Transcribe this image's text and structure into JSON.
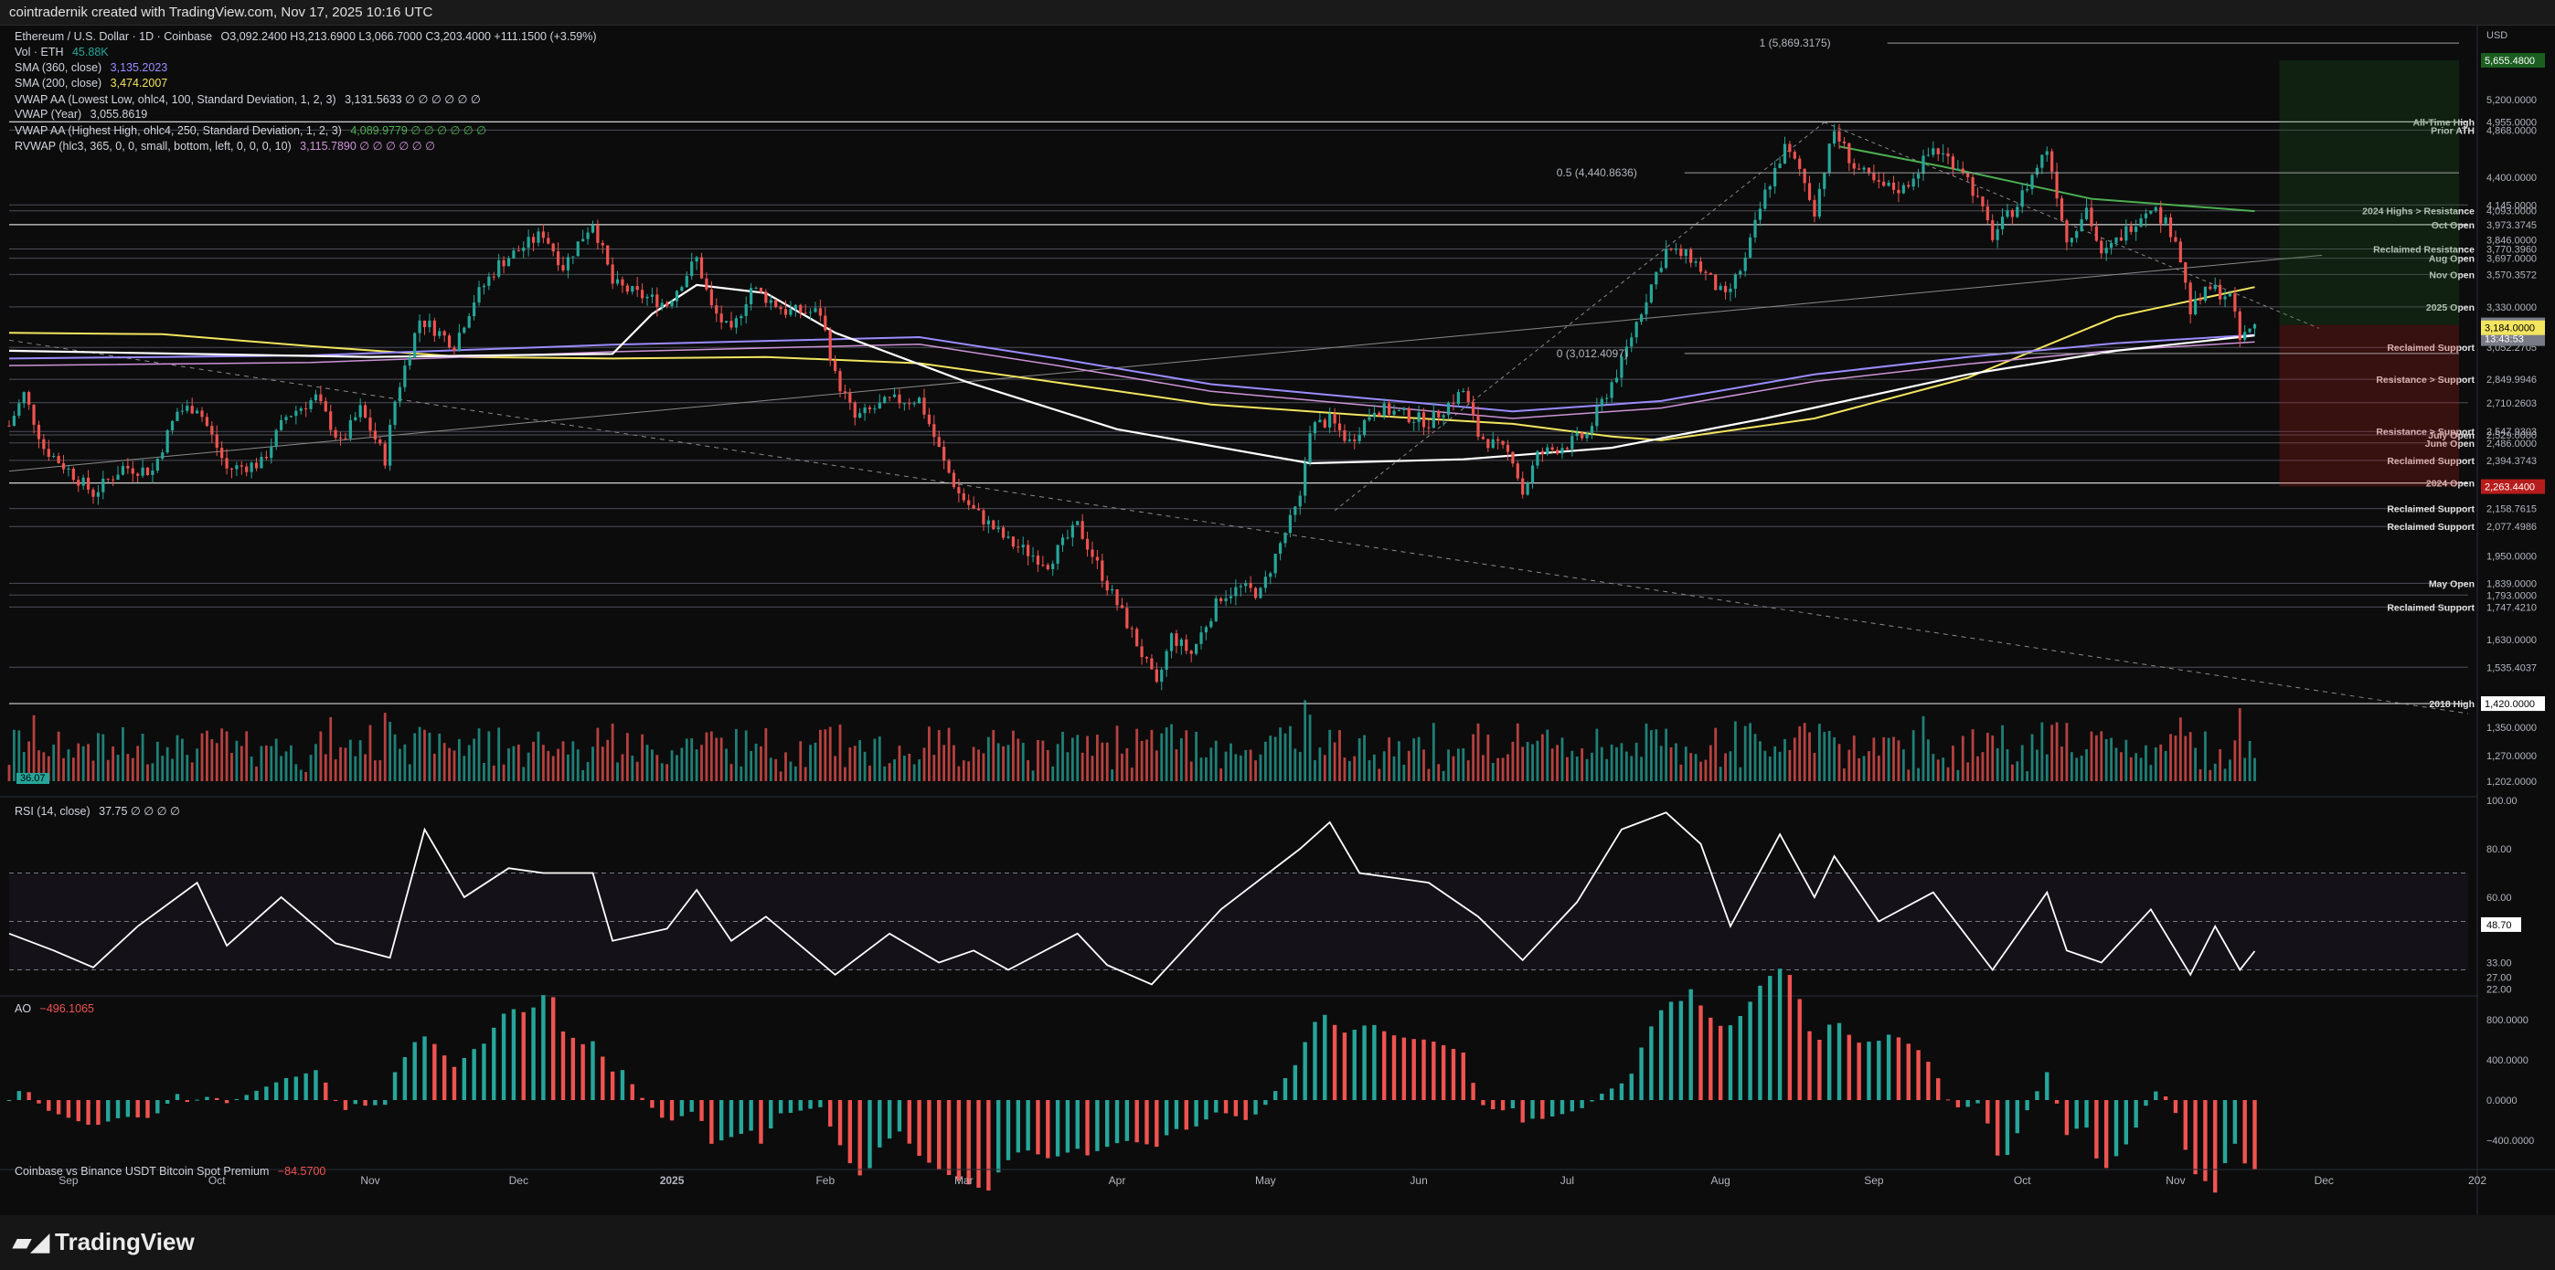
{
  "header": {
    "credit": "cointradernik created with TradingView.com, Nov 17, 2025 10:16 UTC"
  },
  "footer": {
    "brand": "TradingView"
  },
  "legend": {
    "symbol": "Ethereum / U.S. Dollar · 1D · Coinbase",
    "ohlc": "O3,092.2400  H3,213.6900  L3,066.7000  C3,203.4000  +111.1500 (+3.59%)",
    "vol": "Vol · ETH",
    "vol_value": "45.88K",
    "sma360": "SMA (360, close)",
    "sma360_value": "3,135.2023",
    "sma200": "SMA (200, close)",
    "sma200_value": "3,474.2007",
    "vwap_low": "VWAP AA (Lowest Low, ohlc4, 100, Standard Deviation, 1, 2, 3)",
    "vwap_low_value": "3,131.5633  ∅ ∅ ∅ ∅ ∅ ∅",
    "vwap_year": "VWAP (Year)",
    "vwap_year_value": "3,055.8619",
    "vwap_high": "VWAP AA (Highest High, ohlc4, 250, Standard Deviation, 1, 2, 3)",
    "vwap_high_value": "4,089.9779  ∅ ∅ ∅ ∅ ∅ ∅",
    "rvwap": "RVWAP (hlc3, 365, 0, 0, small, bottom, left, 0, 0, 0, 10)",
    "rvwap_value": "3,115.7890  ∅ ∅ ∅ ∅ ∅ ∅",
    "rsi": "RSI (14, close)",
    "rsi_value": "37.75  ∅ ∅ ∅ ∅",
    "ao": "AO",
    "ao_value": "−496.1065",
    "premium": "Coinbase vs Binance USDT Bitcoin Spot Premium",
    "premium_value": "−84.5700",
    "vol_tag": "36.07"
  },
  "colors": {
    "up": "#26a69a",
    "down": "#ef5350",
    "sma200": "#f3e55f",
    "sma360": "#9b8cff",
    "vwap_low": "#ffffff",
    "vwap_high": "#4caf50",
    "rvwap": "#ce93d8",
    "rsi": "#ffffff",
    "axis_text": "#b2b5be",
    "level_line": "#5d606b",
    "current_price_bg": "#787b86"
  },
  "chart_data": {
    "type": "candlestick",
    "symbol": "ETHUSD",
    "timeframe": "1D",
    "x_range": [
      "2024-08-20",
      "2026-01-01"
    ],
    "y_scale": "log",
    "ylim": [
      1202,
      5700
    ],
    "x_ticks": [
      "Sep",
      "Oct",
      "Nov",
      "Dec",
      "2025",
      "Feb",
      "Mar",
      "Apr",
      "May",
      "Jun",
      "Jul",
      "Aug",
      "Sep",
      "Oct",
      "Nov",
      "Dec",
      "202"
    ],
    "price_axis_labels": [
      "USD",
      "5,200.0000",
      "4,400.0000",
      "3,846.0000",
      "1,950.0000",
      "1,630.0000",
      "1,350.0000",
      "1,270.0000",
      "1,202.0000"
    ],
    "price_tags": [
      {
        "label": "5,655.4800",
        "color": "#1b5e20",
        "fg": "#ffffff"
      },
      {
        "label": "3,203.4000",
        "color": "#787b86",
        "fg": "#ffffff"
      },
      {
        "label": "13:43:53",
        "color": "#787b86",
        "fg": "#ffffff"
      },
      {
        "label": "3,184.0000",
        "color": "#f3e55f",
        "fg": "#000000"
      },
      {
        "label": "2,263.4400",
        "color": "#b71c1c",
        "fg": "#ffffff"
      },
      {
        "label": "1,420.0000",
        "color": "#ffffff",
        "fg": "#000000"
      }
    ],
    "levels": [
      {
        "price": 4955,
        "value": "4,955.0000",
        "label": "All-Time High"
      },
      {
        "price": 4868,
        "value": "4,868.0000",
        "label": "Prior ATH"
      },
      {
        "price": 4145,
        "value": "4,145.0000",
        "label": ""
      },
      {
        "price": 4093,
        "value": "4,093.0000",
        "label": "2024 Highs > Resistance"
      },
      {
        "price": 3973.3745,
        "value": "3,973.3745",
        "label": "Oct Open"
      },
      {
        "price": 3770.396,
        "value": "3,770.3960",
        "label": "Reclaimed Resistance"
      },
      {
        "price": 3697,
        "value": "3,697.0000",
        "label": "Aug Open"
      },
      {
        "price": 3570.3572,
        "value": "3,570.3572",
        "label": "Nov Open"
      },
      {
        "price": 3330,
        "value": "3,330.0000",
        "label": "2025 Open"
      },
      {
        "price": 3052.2705,
        "value": "3,052.2705",
        "label": "Reclaimed Support"
      },
      {
        "price": 2849.9946,
        "value": "2,849.9946",
        "label": "Resistance > Support"
      },
      {
        "price": 2710.2603,
        "value": "2,710.2603",
        "label": ""
      },
      {
        "price": 2547.9303,
        "value": "2,547.9303",
        "label": "Resistance > Support"
      },
      {
        "price": 2529,
        "value": "2,529.0000",
        "label": "July Open"
      },
      {
        "price": 2486,
        "value": "2,486.0000",
        "label": "June Open"
      },
      {
        "price": 2394.3743,
        "value": "2,394.3743",
        "label": "Reclaimed Support"
      },
      {
        "price": 2281,
        "value": "2,281.0000",
        "label": "2024 Open"
      },
      {
        "price": 2158.7615,
        "value": "2,158.7615",
        "label": "Reclaimed Support"
      },
      {
        "price": 2077.4986,
        "value": "2,077.4986",
        "label": "Reclaimed Support"
      },
      {
        "price": 1839,
        "value": "1,839.0000",
        "label": "May Open"
      },
      {
        "price": 1793,
        "value": "1,793.0000",
        "label": ""
      },
      {
        "price": 1747.421,
        "value": "1,747.4210",
        "label": "Reclaimed Support"
      },
      {
        "price": 1535.4037,
        "value": "1,535.4037",
        "label": ""
      },
      {
        "price": 1420,
        "value": "1,420.0000",
        "label": "2018 High"
      }
    ],
    "fib": [
      {
        "label": "1 (5,869.3175)",
        "price": 5869.3175
      },
      {
        "label": "0.5 (4,440.8636)",
        "price": 4440.8636
      },
      {
        "label": "0 (3,012.4097)",
        "price": 3012.4097
      }
    ],
    "close_path": [
      [
        "2024-08-20",
        2580
      ],
      [
        "2024-08-23",
        2760
      ],
      [
        "2024-08-27",
        2460
      ],
      [
        "2024-09-06",
        2230
      ],
      [
        "2024-09-12",
        2360
      ],
      [
        "2024-09-18",
        2340
      ],
      [
        "2024-09-23",
        2660
      ],
      [
        "2024-09-27",
        2690
      ],
      [
        "2024-10-03",
        2350
      ],
      [
        "2024-10-10",
        2380
      ],
      [
        "2024-10-15",
        2630
      ],
      [
        "2024-10-21",
        2740
      ],
      [
        "2024-10-26",
        2480
      ],
      [
        "2024-10-30",
        2670
      ],
      [
        "2024-11-04",
        2400
      ],
      [
        "2024-11-06",
        2720
      ],
      [
        "2024-11-11",
        3240
      ],
      [
        "2024-11-13",
        3200
      ],
      [
        "2024-11-18",
        3070
      ],
      [
        "2024-11-22",
        3380
      ],
      [
        "2024-11-27",
        3650
      ],
      [
        "2024-12-06",
        3900
      ],
      [
        "2024-12-10",
        3630
      ],
      [
        "2024-12-16",
        4000
      ],
      [
        "2024-12-20",
        3500
      ],
      [
        "2024-12-25",
        3420
      ],
      [
        "2024-12-31",
        3350
      ],
      [
        "2025-01-06",
        3690
      ],
      [
        "2025-01-09",
        3320
      ],
      [
        "2025-01-13",
        3140
      ],
      [
        "2025-01-17",
        3470
      ],
      [
        "2025-01-24",
        3300
      ],
      [
        "2025-01-31",
        3290
      ],
      [
        "2025-02-03",
        2870
      ],
      [
        "2025-02-07",
        2620
      ],
      [
        "2025-02-14",
        2720
      ],
      [
        "2025-02-20",
        2730
      ],
      [
        "2025-02-25",
        2380
      ],
      [
        "2025-02-28",
        2230
      ],
      [
        "2025-03-03",
        2150
      ],
      [
        "2025-03-10",
        2010
      ],
      [
        "2025-03-18",
        1920
      ],
      [
        "2025-03-24",
        2080
      ],
      [
        "2025-03-30",
        1830
      ],
      [
        "2025-04-06",
        1580
      ],
      [
        "2025-04-09",
        1470
      ],
      [
        "2025-04-12",
        1640
      ],
      [
        "2025-04-16",
        1580
      ],
      [
        "2025-04-22",
        1790
      ],
      [
        "2025-04-26",
        1820
      ],
      [
        "2025-04-30",
        1800
      ],
      [
        "2025-05-08",
        2200
      ],
      [
        "2025-05-10",
        2570
      ],
      [
        "2025-05-14",
        2610
      ],
      [
        "2025-05-18",
        2490
      ],
      [
        "2025-05-23",
        2680
      ],
      [
        "2025-05-28",
        2650
      ],
      [
        "2025-06-03",
        2600
      ],
      [
        "2025-06-10",
        2780
      ],
      [
        "2025-06-13",
        2530
      ],
      [
        "2025-06-20",
        2410
      ],
      [
        "2025-06-22",
        2230
      ],
      [
        "2025-06-25",
        2420
      ],
      [
        "2025-07-01",
        2480
      ],
      [
        "2025-07-05",
        2530
      ],
      [
        "2025-07-09",
        2770
      ],
      [
        "2025-07-12",
        2950
      ],
      [
        "2025-07-17",
        3400
      ],
      [
        "2025-07-21",
        3760
      ],
      [
        "2025-07-26",
        3700
      ],
      [
        "2025-08-02",
        3390
      ],
      [
        "2025-08-06",
        3680
      ],
      [
        "2025-08-10",
        4250
      ],
      [
        "2025-08-14",
        4680
      ],
      [
        "2025-08-17",
        4470
      ],
      [
        "2025-08-20",
        4100
      ],
      [
        "2025-08-24",
        4860
      ],
      [
        "2025-08-28",
        4500
      ],
      [
        "2025-09-02",
        4310
      ],
      [
        "2025-09-07",
        4290
      ],
      [
        "2025-09-13",
        4680
      ],
      [
        "2025-09-19",
        4480
      ],
      [
        "2025-09-25",
        3880
      ],
      [
        "2025-09-30",
        4150
      ],
      [
        "2025-10-06",
        4680
      ],
      [
        "2025-10-10",
        3830
      ],
      [
        "2025-10-14",
        4120
      ],
      [
        "2025-10-17",
        3700
      ],
      [
        "2025-10-21",
        3880
      ],
      [
        "2025-10-27",
        4150
      ],
      [
        "2025-11-01",
        3870
      ],
      [
        "2025-11-04",
        3300
      ],
      [
        "2025-11-08",
        3470
      ],
      [
        "2025-11-12",
        3400
      ],
      [
        "2025-11-14",
        3100
      ],
      [
        "2025-11-17",
        3203.4
      ]
    ],
    "sma200_path": [
      [
        "2024-08-20",
        3150
      ],
      [
        "2024-09-20",
        3140
      ],
      [
        "2024-10-20",
        3060
      ],
      [
        "2024-11-20",
        2990
      ],
      [
        "2024-12-20",
        2980
      ],
      [
        "2025-01-20",
        2990
      ],
      [
        "2025-02-20",
        2950
      ],
      [
        "2025-03-20",
        2830
      ],
      [
        "2025-04-20",
        2700
      ],
      [
        "2025-05-20",
        2640
      ],
      [
        "2025-06-20",
        2590
      ],
      [
        "2025-07-10",
        2520
      ],
      [
        "2025-07-20",
        2500
      ],
      [
        "2025-08-20",
        2620
      ],
      [
        "2025-09-20",
        2860
      ],
      [
        "2025-10-20",
        3260
      ],
      [
        "2025-11-17",
        3474.2
      ]
    ],
    "sma360_path": [
      [
        "2024-08-20",
        2980
      ],
      [
        "2024-10-20",
        3000
      ],
      [
        "2024-12-20",
        3070
      ],
      [
        "2025-02-20",
        3120
      ],
      [
        "2025-03-20",
        2980
      ],
      [
        "2025-04-20",
        2820
      ],
      [
        "2025-05-20",
        2740
      ],
      [
        "2025-06-20",
        2660
      ],
      [
        "2025-07-20",
        2720
      ],
      [
        "2025-08-20",
        2880
      ],
      [
        "2025-09-20",
        2990
      ],
      [
        "2025-10-20",
        3080
      ],
      [
        "2025-11-17",
        3135.2
      ]
    ],
    "vwap_low_path": [
      [
        "2024-08-20",
        3030
      ],
      [
        "2024-11-01",
        2990
      ],
      [
        "2024-12-20",
        3010
      ],
      [
        "2024-12-28",
        3280
      ],
      [
        "2025-01-06",
        3490
      ],
      [
        "2025-01-20",
        3430
      ],
      [
        "2025-02-03",
        3150
      ],
      [
        "2025-03-01",
        2840
      ],
      [
        "2025-04-01",
        2560
      ],
      [
        "2025-05-10",
        2380
      ],
      [
        "2025-06-10",
        2400
      ],
      [
        "2025-07-10",
        2460
      ],
      [
        "2025-08-10",
        2620
      ],
      [
        "2025-09-20",
        2880
      ],
      [
        "2025-10-20",
        3030
      ],
      [
        "2025-11-17",
        3131.6
      ]
    ],
    "vwap_high_path": [
      [
        "2025-08-25",
        4700
      ],
      [
        "2025-09-15",
        4500
      ],
      [
        "2025-10-15",
        4200
      ],
      [
        "2025-11-17",
        4090
      ]
    ],
    "rsi": {
      "ylim": [
        20,
        100
      ],
      "axis_labels": [
        "100.00",
        "80.00",
        "60.00",
        "48.70",
        "33.00",
        "27.00",
        "22.00"
      ],
      "levels": [
        70,
        50,
        30
      ],
      "path": [
        [
          "2024-08-20",
          45
        ],
        [
          "2024-08-29",
          38
        ],
        [
          "2024-09-06",
          31
        ],
        [
          "2024-09-15",
          48
        ],
        [
          "2024-09-27",
          66
        ],
        [
          "2024-10-03",
          40
        ],
        [
          "2024-10-14",
          60
        ],
        [
          "2024-10-25",
          41
        ],
        [
          "2024-11-05",
          35
        ],
        [
          "2024-11-12",
          88
        ],
        [
          "2024-11-20",
          60
        ],
        [
          "2024-11-29",
          72
        ],
        [
          "2024-12-06",
          70
        ],
        [
          "2024-12-16",
          70
        ],
        [
          "2024-12-20",
          42
        ],
        [
          "2024-12-31",
          47
        ],
        [
          "2025-01-06",
          63
        ],
        [
          "2025-01-13",
          42
        ],
        [
          "2025-01-20",
          52
        ],
        [
          "2025-02-03",
          28
        ],
        [
          "2025-02-14",
          45
        ],
        [
          "2025-02-24",
          33
        ],
        [
          "2025-03-03",
          38
        ],
        [
          "2025-03-10",
          30
        ],
        [
          "2025-03-24",
          45
        ],
        [
          "2025-03-30",
          32
        ],
        [
          "2025-04-08",
          24
        ],
        [
          "2025-04-22",
          55
        ],
        [
          "2025-05-08",
          80
        ],
        [
          "2025-05-14",
          91
        ],
        [
          "2025-05-20",
          70
        ],
        [
          "2025-06-03",
          66
        ],
        [
          "2025-06-13",
          52
        ],
        [
          "2025-06-22",
          34
        ],
        [
          "2025-07-03",
          58
        ],
        [
          "2025-07-12",
          88
        ],
        [
          "2025-07-21",
          95
        ],
        [
          "2025-07-28",
          82
        ],
        [
          "2025-08-03",
          48
        ],
        [
          "2025-08-13",
          86
        ],
        [
          "2025-08-20",
          60
        ],
        [
          "2025-08-24",
          77
        ],
        [
          "2025-09-02",
          50
        ],
        [
          "2025-09-13",
          62
        ],
        [
          "2025-09-25",
          30
        ],
        [
          "2025-10-06",
          62
        ],
        [
          "2025-10-10",
          38
        ],
        [
          "2025-10-17",
          33
        ],
        [
          "2025-10-27",
          55
        ],
        [
          "2025-11-04",
          28
        ],
        [
          "2025-11-09",
          48
        ],
        [
          "2025-11-14",
          30
        ],
        [
          "2025-11-17",
          37.75
        ]
      ]
    },
    "ao": {
      "ylim": [
        -600,
        1000
      ],
      "axis_labels": [
        "800.0000",
        "400.0000",
        "0.0000",
        "−400.0000"
      ],
      "current": -496.1065
    }
  }
}
